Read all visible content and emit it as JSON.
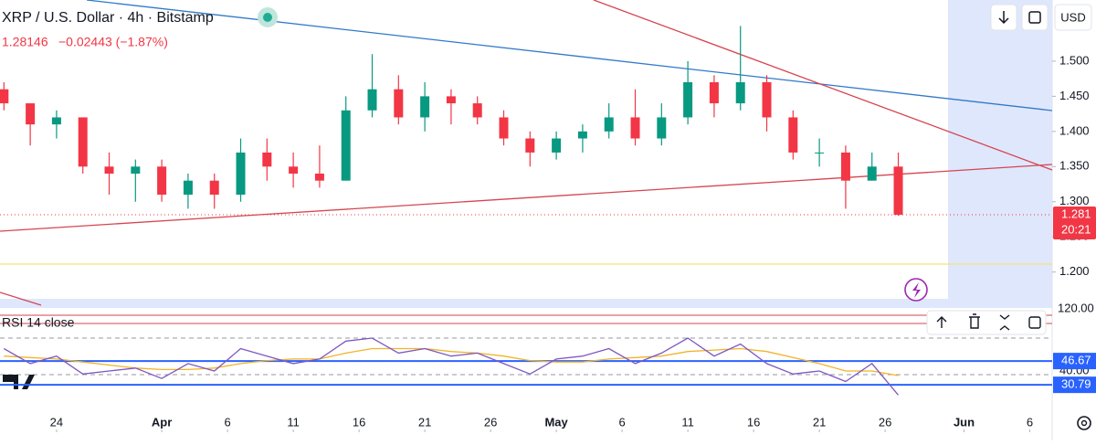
{
  "header": {
    "symbol": "XRP / U.S. Dollar · 4h · Bitstamp",
    "price": "1.28146",
    "change": "−0.02443 (−1.87%)",
    "currency": "USD"
  },
  "chart_data": [
    {
      "type": "candlestick",
      "open": [
        1.46,
        1.44,
        1.41,
        1.42,
        1.35,
        1.34,
        1.35,
        1.31,
        1.33,
        1.31,
        1.37,
        1.35,
        1.34,
        1.33,
        1.43,
        1.46,
        1.42,
        1.45,
        1.44,
        1.42,
        1.39,
        1.37,
        1.39,
        1.4,
        1.42,
        1.39,
        1.42,
        1.47,
        1.44,
        1.47,
        1.42,
        1.37,
        1.37,
        1.33,
        1.35
      ],
      "high": [
        1.47,
        1.44,
        1.43,
        1.42,
        1.37,
        1.36,
        1.36,
        1.34,
        1.34,
        1.39,
        1.39,
        1.37,
        1.38,
        1.45,
        1.51,
        1.48,
        1.47,
        1.46,
        1.45,
        1.43,
        1.4,
        1.4,
        1.41,
        1.44,
        1.46,
        1.44,
        1.5,
        1.48,
        1.55,
        1.48,
        1.43,
        1.39,
        1.38,
        1.37,
        1.37
      ],
      "low": [
        1.43,
        1.38,
        1.39,
        1.34,
        1.31,
        1.3,
        1.3,
        1.29,
        1.29,
        1.3,
        1.33,
        1.32,
        1.32,
        1.33,
        1.42,
        1.41,
        1.4,
        1.41,
        1.41,
        1.38,
        1.35,
        1.36,
        1.37,
        1.39,
        1.38,
        1.38,
        1.41,
        1.42,
        1.43,
        1.4,
        1.36,
        1.35,
        1.29,
        1.33,
        1.28
      ],
      "close": [
        1.44,
        1.41,
        1.42,
        1.35,
        1.34,
        1.35,
        1.31,
        1.33,
        1.31,
        1.37,
        1.35,
        1.34,
        1.33,
        1.43,
        1.46,
        1.42,
        1.45,
        1.44,
        1.42,
        1.39,
        1.37,
        1.39,
        1.4,
        1.42,
        1.39,
        1.42,
        1.47,
        1.44,
        1.47,
        1.42,
        1.37,
        1.37,
        1.33,
        1.35,
        1.28146
      ],
      "color_up": "#089981",
      "color_down": "#f23645",
      "xlim": [
        -0.15,
        39.85
      ],
      "xticks": [
        {
          "value": 2,
          "label": "24"
        },
        {
          "value": 6,
          "label": "Apr"
        },
        {
          "value": 8.5,
          "label": "6"
        },
        {
          "value": 11,
          "label": "11"
        },
        {
          "value": 13.5,
          "label": "16"
        },
        {
          "value": 16,
          "label": "21"
        },
        {
          "value": 18.5,
          "label": "26"
        },
        {
          "value": 21,
          "label": "May"
        },
        {
          "value": 23.5,
          "label": "6"
        },
        {
          "value": 26,
          "label": "11"
        },
        {
          "value": 28.5,
          "label": "16"
        },
        {
          "value": 31,
          "label": "21"
        },
        {
          "value": 33.5,
          "label": "26"
        },
        {
          "value": 36.5,
          "label": "Jun"
        },
        {
          "value": 39,
          "label": "6"
        }
      ],
      "ylim": [
        1.158,
        1.587
      ],
      "yticks": [
        {
          "value": 1.2,
          "label": "1.200"
        },
        {
          "value": 1.25,
          "label": "1.250"
        },
        {
          "value": 1.3,
          "label": "1.300"
        },
        {
          "value": 1.35,
          "label": "1.350"
        },
        {
          "value": 1.4,
          "label": "1.400"
        },
        {
          "value": 1.45,
          "label": "1.450"
        },
        {
          "value": 1.5,
          "label": "1.500"
        }
      ],
      "last_price_label": "1.281",
      "countdown": "20:21"
    },
    {
      "type": "line",
      "title": "RSI 14 close",
      "series": [
        {
          "color": "#7e57c2",
          "values": [
            55,
            45,
            50,
            38,
            40,
            42,
            35,
            45,
            40,
            55,
            50,
            45,
            48,
            60,
            62,
            52,
            55,
            50,
            52,
            45,
            38,
            48,
            50,
            55,
            45,
            52,
            62,
            50,
            58,
            45,
            38,
            40,
            33,
            45,
            24
          ]
        },
        {
          "color": "#f0b429",
          "values": [
            50,
            49,
            48,
            46,
            44,
            42,
            41,
            41,
            42,
            45,
            47,
            48,
            48,
            52,
            55,
            55,
            55,
            53,
            52,
            50,
            47,
            46,
            46,
            48,
            49,
            50,
            53,
            54,
            55,
            53,
            49,
            45,
            40,
            40,
            37
          ]
        }
      ],
      "ylim": [
        1,
        81.5
      ],
      "levels": [
        46.67,
        30.79
      ],
      "level_color": "#2962ff",
      "axis_top_label": "120.00",
      "partial_tick_label": "40.00"
    }
  ]
}
